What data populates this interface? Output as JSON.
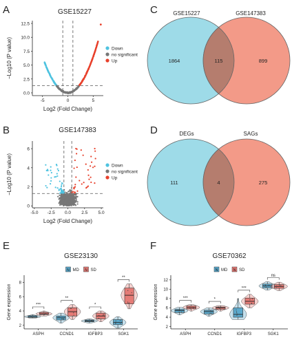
{
  "colors": {
    "down": "#4fc3e0",
    "ns": "#777777",
    "up": "#e8412c",
    "venn_left": "#9edbe8",
    "venn_right": "#f39a88",
    "venn_overlap": "#b57d6e",
    "box_md": "#5ba9cc",
    "box_sd": "#e57b76"
  },
  "chart_data": [
    {
      "panel": "A",
      "type": "scatter",
      "title": "GSE15227",
      "xlabel": "Log2 (Fold Change)",
      "ylabel": "−Log10 (P value)",
      "xlim": [
        -7,
        7
      ],
      "ylim": [
        -0.5,
        13
      ],
      "xticks": [
        "-5",
        "0",
        "5"
      ],
      "yticks": [
        "0.0",
        "2.5",
        "5.0",
        "7.5",
        "10.0",
        "12.5"
      ],
      "threshold_x": [
        -1,
        1
      ],
      "threshold_y": 1.3,
      "legend": [
        "Down",
        "no significant",
        "Up"
      ],
      "legend_placement": "right",
      "series": [
        {
          "name": "Down",
          "shape": "left arm of V-shaped curve",
          "x_range": [
            -4.6,
            -1
          ],
          "y_range": [
            1.3,
            3.5
          ]
        },
        {
          "name": "no significant",
          "shape": "bottom of V-shaped curve",
          "x_range": [
            -1,
            1
          ],
          "y_range": [
            0,
            1.3
          ]
        },
        {
          "name": "Up",
          "shape": "right arm of V-shaped curve",
          "x_range": [
            1,
            6
          ],
          "y_range": [
            1.3,
            9.5
          ],
          "outlier": [
            6.5,
            12.3
          ]
        }
      ]
    },
    {
      "panel": "B",
      "type": "scatter",
      "title": "GSE147383",
      "xlabel": "Log2 (Fold Change)",
      "ylabel": "−Log10 (P value)",
      "xlim": [
        -5.3,
        5.3
      ],
      "ylim": [
        -0.2,
        6.8
      ],
      "xticks": [
        "-5.0",
        "-2.5",
        "0.0",
        "2.5",
        "5.0"
      ],
      "yticks": [
        "0",
        "2",
        "4",
        "6"
      ],
      "threshold_x": [
        -0.585,
        0.585
      ],
      "threshold_y": 1.3,
      "legend": [
        "Down",
        "no significant",
        "Up"
      ],
      "legend_placement": "right",
      "series": [
        {
          "name": "Down",
          "x_range": [
            -3.5,
            -0.6
          ],
          "y_range": [
            1.3,
            4.5
          ]
        },
        {
          "name": "no significant",
          "x_range": [
            -1.8,
            1.8
          ],
          "y_range": [
            0,
            5.6
          ]
        },
        {
          "name": "Up",
          "x_range": [
            0.6,
            4.3
          ],
          "y_range": [
            1.3,
            6.2
          ]
        }
      ]
    },
    {
      "panel": "C",
      "type": "venn",
      "sets": [
        "GSE15227",
        "GSE147383"
      ],
      "values": [
        1864,
        115,
        899
      ]
    },
    {
      "panel": "D",
      "type": "venn",
      "sets": [
        "DEGs",
        "SAGs"
      ],
      "values": [
        111,
        4,
        275
      ]
    },
    {
      "panel": "E",
      "type": "box",
      "title": "GSE23130",
      "ylabel": "Gene expression",
      "ylim": [
        1.5,
        9
      ],
      "yticks": [
        "2",
        "4",
        "6",
        "8"
      ],
      "categories": [
        "ASPH",
        "CCND1",
        "IGFBP3",
        "SGK1"
      ],
      "legend": [
        "MD",
        "SD"
      ],
      "legend_keys": [
        "N",
        "N"
      ],
      "legend_placement": "top",
      "significance": [
        "***",
        "**",
        "*",
        "**"
      ],
      "series": [
        {
          "name": "MD",
          "boxes": [
            {
              "min": 3.0,
              "q1": 3.1,
              "median": 3.2,
              "q3": 3.35,
              "max": 3.5
            },
            {
              "min": 2.3,
              "q1": 2.75,
              "median": 3.05,
              "q3": 3.3,
              "max": 3.7
            },
            {
              "min": 2.3,
              "q1": 2.5,
              "median": 2.6,
              "q3": 2.75,
              "max": 2.9
            },
            {
              "min": 1.6,
              "q1": 2.1,
              "median": 2.4,
              "q3": 2.8,
              "max": 3.2
            }
          ]
        },
        {
          "name": "SD",
          "boxes": [
            {
              "min": 3.3,
              "q1": 3.5,
              "median": 3.6,
              "q3": 3.8,
              "max": 4.0
            },
            {
              "min": 2.8,
              "q1": 3.3,
              "median": 3.9,
              "q3": 4.45,
              "max": 4.9
            },
            {
              "min": 2.5,
              "q1": 2.9,
              "median": 3.3,
              "q3": 3.7,
              "max": 4.0
            },
            {
              "min": 4.3,
              "q1": 5.0,
              "median": 6.2,
              "q3": 7.2,
              "max": 7.8
            }
          ]
        }
      ]
    },
    {
      "panel": "F",
      "type": "box",
      "title": "GSE70362",
      "ylabel": "Gene expression",
      "ylim": [
        1.5,
        13
      ],
      "yticks": [
        "2",
        "4",
        "6",
        "8",
        "10",
        "12"
      ],
      "categories": [
        "ASPH",
        "CCND1",
        "IGFBP3",
        "SGK1"
      ],
      "legend": [
        "MD",
        "SD"
      ],
      "legend_keys": [
        "N",
        "N"
      ],
      "legend_placement": "top",
      "significance": [
        "***",
        "*",
        "***",
        "ns"
      ],
      "series": [
        {
          "name": "MD",
          "boxes": [
            {
              "min": 4.5,
              "q1": 5.0,
              "median": 5.4,
              "q3": 5.7,
              "max": 6.1
            },
            {
              "min": 4.2,
              "q1": 4.7,
              "median": 5.2,
              "q3": 5.5,
              "max": 6.0
            },
            {
              "min": 3.5,
              "q1": 4.0,
              "median": 4.6,
              "q3": 6.0,
              "max": 8.0
            },
            {
              "min": 9.8,
              "q1": 10.3,
              "median": 10.7,
              "q3": 11.1,
              "max": 11.6
            }
          ]
        },
        {
          "name": "SD",
          "boxes": [
            {
              "min": 5.3,
              "q1": 5.8,
              "median": 6.1,
              "q3": 6.4,
              "max": 6.7
            },
            {
              "min": 5.3,
              "q1": 5.7,
              "median": 6.0,
              "q3": 6.2,
              "max": 6.5
            },
            {
              "min": 6.0,
              "q1": 6.8,
              "median": 7.4,
              "q3": 8.1,
              "max": 8.9
            },
            {
              "min": 9.7,
              "q1": 10.2,
              "median": 10.6,
              "q3": 11.0,
              "max": 11.5
            }
          ]
        }
      ]
    }
  ]
}
